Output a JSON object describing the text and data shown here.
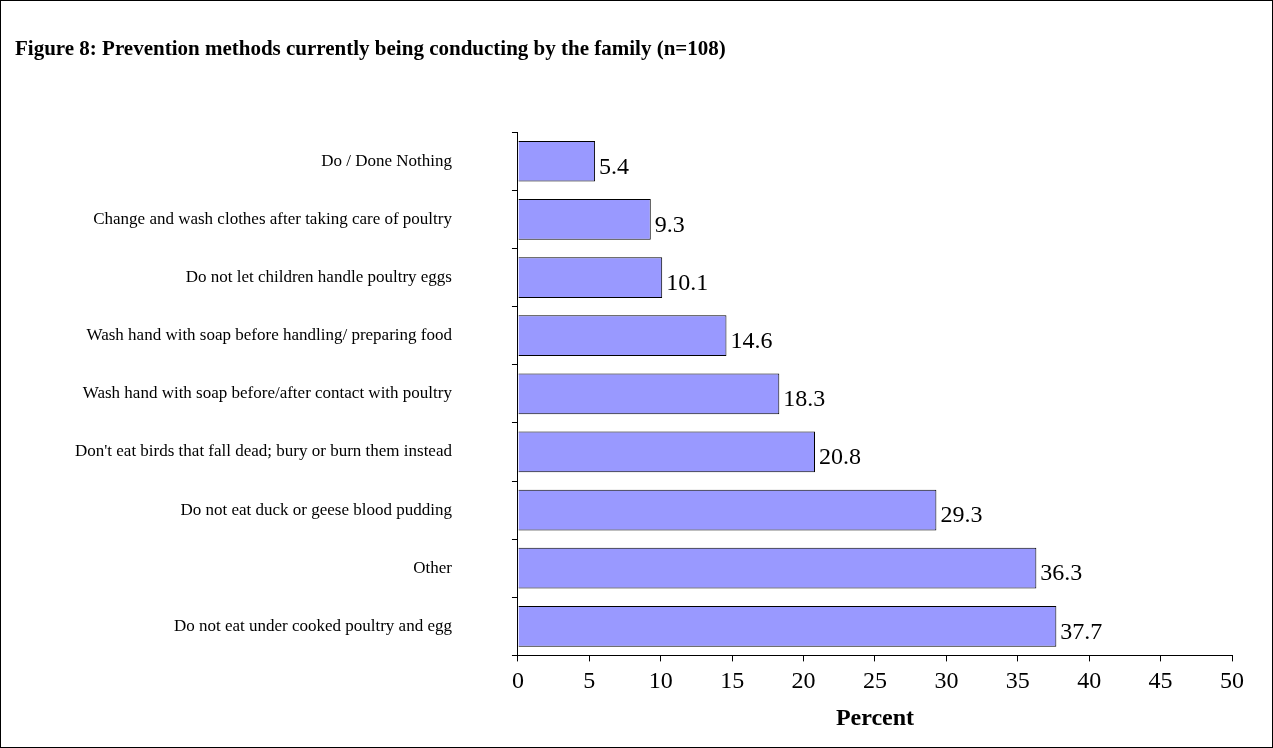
{
  "chart_data": {
    "type": "bar",
    "orientation": "horizontal",
    "title": "Figure 8: Prevention methods currently being conducting by the family (n=108)",
    "categories": [
      "Do / Done Nothing",
      "Change and wash clothes after taking care of poultry",
      "Do not let children handle poultry eggs",
      "Wash hand with soap before handling/ preparing food",
      "Wash hand with soap before/after contact with poultry",
      "Don't eat birds that fall dead; bury or burn them instead",
      "Do not eat duck or geese blood pudding",
      "Other",
      "Do not eat under cooked poultry and egg"
    ],
    "values": [
      5.4,
      9.3,
      10.1,
      14.6,
      18.3,
      20.8,
      29.3,
      36.3,
      37.7
    ],
    "color": "#9999ff",
    "xlabel": "Percent",
    "xlim": [
      0,
      50
    ],
    "xticks": [
      0,
      5,
      10,
      15,
      20,
      25,
      30,
      35,
      40,
      45,
      50
    ],
    "grid": false,
    "legend": false,
    "data_labels": true
  }
}
